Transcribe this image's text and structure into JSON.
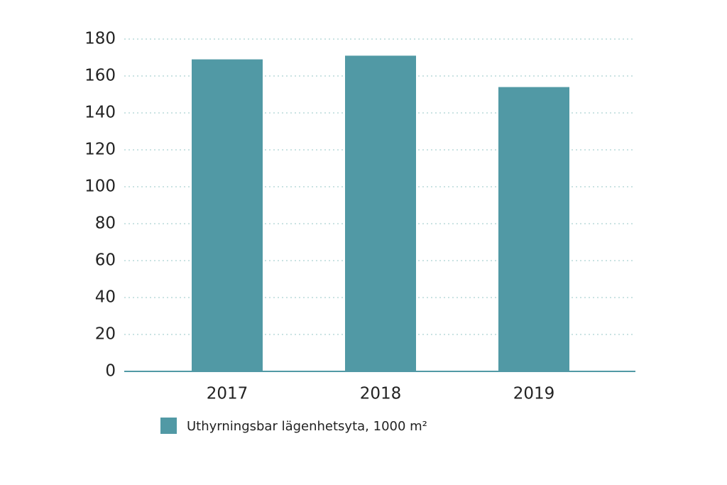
{
  "chart_data": {
    "type": "bar",
    "categories": [
      "2017",
      "2018",
      "2019"
    ],
    "series": [
      {
        "name": "Uthyrningsbar lägenhetsyta, 1000 m²",
        "color": "#5199a5",
        "values": [
          169,
          171,
          154
        ]
      }
    ],
    "ylim": [
      0,
      180
    ],
    "yticks": [
      0,
      20,
      40,
      60,
      80,
      100,
      120,
      140,
      160,
      180
    ],
    "grid": true
  }
}
